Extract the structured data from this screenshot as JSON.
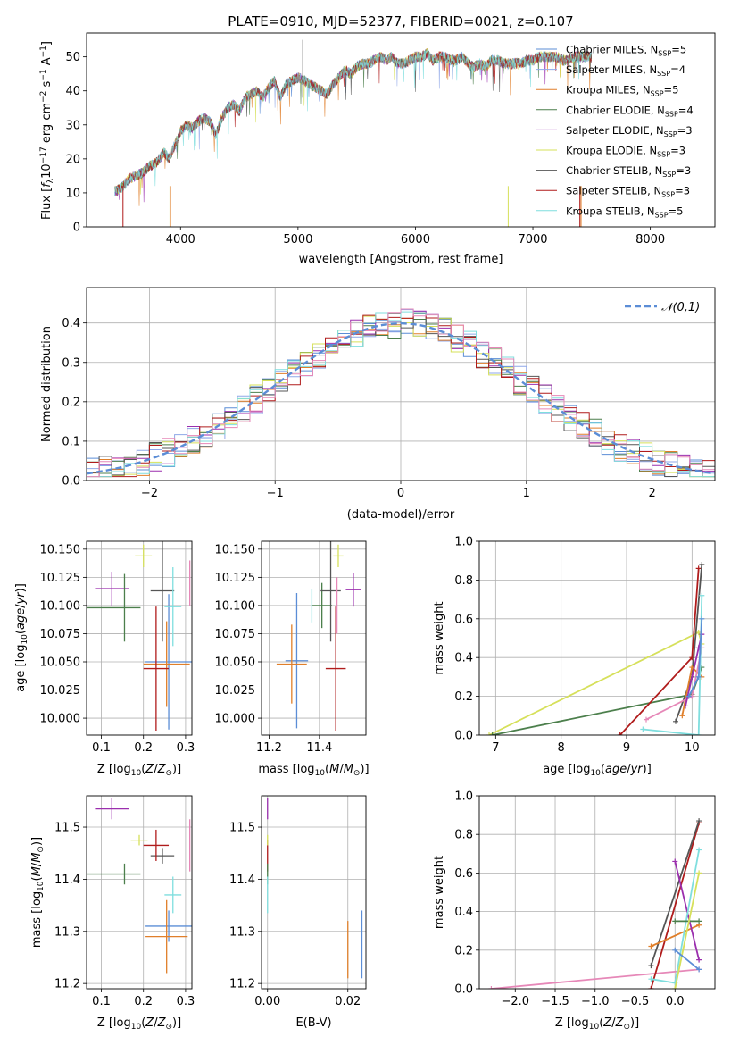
{
  "title": "PLATE=0910, MJD=52377, FIBERID=0021, z=0.107",
  "colors": {
    "chabrier_miles": "#5b8dd6",
    "salpeter_miles": "#8fa7e8",
    "kroupa_miles": "#e07f2a",
    "chabrier_elodie": "#4c7f4c",
    "salpeter_elodie": "#9b2fae",
    "kroupa_elodie": "#d6e05a",
    "chabrier_stelib": "#555555",
    "salpeter_stelib": "#b01c1c",
    "kroupa_stelib": "#7fdede",
    "pink": "#e688b8",
    "normal": "#5b8dd6"
  },
  "chart_data": [
    {
      "panel": "spectrum",
      "type": "line",
      "title": "PLATE=0910, MJD=52377, FIBERID=0021, z=0.107",
      "xlabel": "wavelength [Angstrom, rest frame]",
      "ylabel": "Flux [f_λ 10^-17 erg cm^-2 s^-1 A^-1]",
      "xlim": [
        3200,
        8550
      ],
      "ylim": [
        0,
        57
      ],
      "xticks": [
        "4000",
        "5000",
        "6000",
        "7000",
        "8000"
      ],
      "yticks": [
        "0",
        "10",
        "20",
        "30",
        "40",
        "50"
      ],
      "legend_position": "right",
      "legend": [
        {
          "base": "Chabrier MILES, N",
          "sub": "SSP",
          "tail": "=5"
        },
        {
          "base": "Salpeter MILES, N",
          "sub": "SSP",
          "tail": "=4"
        },
        {
          "base": "Kroupa MILES, N",
          "sub": "SSP",
          "tail": "=5"
        },
        {
          "base": "Chabrier ELODIE, N",
          "sub": "SSP",
          "tail": "=4"
        },
        {
          "base": "Salpeter ELODIE, N",
          "sub": "SSP",
          "tail": "=3"
        },
        {
          "base": "Kroupa ELODIE, N",
          "sub": "SSP",
          "tail": "=3"
        },
        {
          "base": "Chabrier STELIB, N",
          "sub": "SSP",
          "tail": "=3"
        },
        {
          "base": "Salpeter STELIB, N",
          "sub": "SSP",
          "tail": "=3"
        },
        {
          "base": "Kroupa STELIB, N",
          "sub": "SSP",
          "tail": "=5"
        }
      ],
      "spectrum_x": [
        3450,
        3500,
        3560,
        3620,
        3680,
        3740,
        3800,
        3860,
        3900,
        3950,
        4000,
        4050,
        4100,
        4150,
        4200,
        4250,
        4300,
        4350,
        4400,
        4450,
        4500,
        4550,
        4600,
        4650,
        4700,
        4750,
        4800,
        4850,
        4900,
        4950,
        5000,
        5050,
        5100,
        5150,
        5200,
        5250,
        5300,
        5350,
        5400,
        5450,
        5500,
        5550,
        5600,
        5650,
        5700,
        5750,
        5800,
        5850,
        5900,
        5950,
        6000,
        6050,
        6100,
        6150,
        6200,
        6250,
        6300,
        6350,
        6400,
        6450,
        6500,
        6550,
        6600,
        6650,
        6700,
        6750,
        6800,
        6850,
        6900,
        6950,
        7000,
        7050,
        7100,
        7150,
        7200,
        7250,
        7300,
        7350,
        7400,
        7450,
        7500
      ],
      "spectrum_y": [
        10.5,
        11.5,
        14,
        15,
        16,
        18,
        19,
        22,
        20,
        24,
        28,
        30,
        29,
        31,
        32,
        31,
        27,
        32,
        35,
        36,
        34,
        38,
        39,
        40,
        38,
        41,
        43,
        38,
        42,
        43,
        44,
        43,
        42,
        41,
        40,
        39,
        42,
        44,
        46,
        45,
        47,
        48,
        48,
        49,
        50,
        49,
        50,
        48,
        48,
        49,
        50,
        50,
        51,
        49,
        50,
        50,
        49,
        49,
        50,
        48,
        47,
        48,
        47,
        49,
        49,
        48,
        48,
        48,
        48,
        49,
        49,
        50,
        50,
        50,
        50,
        49,
        49,
        50,
        50,
        50,
        50
      ],
      "dropouts": [
        {
          "x": 3510,
          "color": "#b01c1c"
        },
        {
          "x": 3910,
          "color": "#d6e05a"
        },
        {
          "x": 3915,
          "color": "#e07f2a"
        },
        {
          "x": 6790,
          "color": "#d6e05a"
        },
        {
          "x": 7400,
          "color": "#b01c1c"
        },
        {
          "x": 7410,
          "color": "#e07f2a"
        }
      ]
    },
    {
      "panel": "residual-histogram",
      "type": "bar",
      "xlabel": "(data-model)/error",
      "ylabel": "Normed distribution",
      "xlim": [
        -2.5,
        2.5
      ],
      "ylim": [
        0,
        0.49
      ],
      "xticks": [
        "-2",
        "-1",
        "0",
        "1",
        "2"
      ],
      "yticks": [
        "0.0",
        "0.1",
        "0.2",
        "0.3",
        "0.4"
      ],
      "grid": true,
      "bin_width": 0.1,
      "normal_label": "𝒩(0,1)",
      "legend_position": "top-right"
    },
    {
      "panel": "age-vs-Z",
      "type": "scatter",
      "xlabel": "Z [log10(Z/Z⊙)]",
      "ylabel": "age  [log10(age/yr)]",
      "xlim": [
        0.065,
        0.315
      ],
      "ylim": [
        9.985,
        10.157
      ],
      "xticks": [
        "0.1",
        "0.2",
        "0.3"
      ],
      "yticks": [
        "10.000",
        "10.025",
        "10.050",
        "10.075",
        "10.100",
        "10.125",
        "10.150"
      ],
      "grid": true,
      "points": [
        {
          "x": 0.26,
          "y": 10.05,
          "xe": 0.055,
          "ye": 0.06,
          "color": "#5b8dd6"
        },
        {
          "x": 0.255,
          "y": 10.048,
          "xe": 0.055,
          "ye": 0.038,
          "color": "#e07f2a"
        },
        {
          "x": 0.2,
          "y": 10.144,
          "xe": 0.02,
          "ye": 0.01,
          "color": "#d6e05a"
        },
        {
          "x": 0.125,
          "y": 10.115,
          "xe": 0.04,
          "ye": 0.015,
          "color": "#9b2fae"
        },
        {
          "x": 0.13,
          "y": 10.098,
          "xe": 0.063,
          "ye": 0.0,
          "color": "#4c7f4c"
        },
        {
          "x": 0.155,
          "y": 10.098,
          "xe": 0.0,
          "ye": 0.03,
          "color": "#4c7f4c"
        },
        {
          "x": 0.245,
          "y": 10.113,
          "xe": 0.028,
          "ye": 0.045,
          "color": "#555555"
        },
        {
          "x": 0.23,
          "y": 10.044,
          "xe": 0.03,
          "ye": 0.055,
          "color": "#b01c1c"
        },
        {
          "x": 0.27,
          "y": 10.099,
          "xe": 0.02,
          "ye": 0.035,
          "color": "#7fdede"
        },
        {
          "x": 0.31,
          "y": 10.12,
          "xe": 0.0,
          "ye": 0.02,
          "color": "#e688b8"
        }
      ]
    },
    {
      "panel": "age-vs-mass",
      "type": "scatter",
      "xlabel": "mass [log10(M/M⊙)]",
      "ylabel": "",
      "xlim": [
        11.17,
        11.585
      ],
      "ylim": [
        9.985,
        10.157
      ],
      "xticks": [
        "11.2",
        "11.4"
      ],
      "yticks": [
        "10.000",
        "10.025",
        "10.050",
        "10.075",
        "10.100",
        "10.125",
        "10.150"
      ],
      "grid": true,
      "points": [
        {
          "x": 11.31,
          "y": 10.051,
          "xe": 0.045,
          "ye": 0.06,
          "color": "#5b8dd6"
        },
        {
          "x": 11.29,
          "y": 10.048,
          "xe": 0.06,
          "ye": 0.035,
          "color": "#e07f2a"
        },
        {
          "x": 11.475,
          "y": 10.144,
          "xe": 0.02,
          "ye": 0.01,
          "color": "#d6e05a"
        },
        {
          "x": 11.535,
          "y": 10.114,
          "xe": 0.03,
          "ye": 0.015,
          "color": "#9b2fae"
        },
        {
          "x": 11.41,
          "y": 10.1,
          "xe": 0.04,
          "ye": 0.02,
          "color": "#4c7f4c"
        },
        {
          "x": 11.445,
          "y": 10.113,
          "xe": 0.04,
          "ye": 0.045,
          "color": "#555555"
        },
        {
          "x": 11.465,
          "y": 10.044,
          "xe": 0.04,
          "ye": 0.055,
          "color": "#b01c1c"
        },
        {
          "x": 11.37,
          "y": 10.1,
          "xe": 0.0,
          "ye": 0.015,
          "color": "#7fdede"
        },
        {
          "x": 11.47,
          "y": 10.1,
          "xe": 0.0,
          "ye": 0.025,
          "color": "#e688b8"
        }
      ]
    },
    {
      "panel": "mass-weight-vs-age",
      "type": "line",
      "xlabel": "age  [log10(age/yr)]",
      "ylabel": "mass weight",
      "xlim": [
        6.75,
        10.35
      ],
      "ylim": [
        0,
        1.0
      ],
      "xticks": [
        "7",
        "8",
        "9",
        "10"
      ],
      "yticks": [
        "0.0",
        "0.2",
        "0.4",
        "0.6",
        "0.8",
        "1.0"
      ],
      "grid": true,
      "series": [
        {
          "color": "#d6e05a",
          "x": [
            6.9,
            10.1,
            10.15
          ],
          "y": [
            0.0,
            0.53,
            0.47
          ]
        },
        {
          "color": "#4c7f4c",
          "x": [
            6.95,
            10.0,
            10.15
          ],
          "y": [
            0.0,
            0.21,
            0.35
          ]
        },
        {
          "color": "#b01c1c",
          "x": [
            8.9,
            10.0,
            10.1
          ],
          "y": [
            0.0,
            0.4,
            0.86
          ]
        },
        {
          "color": "#555555",
          "x": [
            9.75,
            10.0,
            10.15
          ],
          "y": [
            0.07,
            0.3,
            0.88
          ]
        },
        {
          "color": "#e07f2a",
          "x": [
            9.85,
            10.0,
            10.15
          ],
          "y": [
            0.1,
            0.35,
            0.3
          ]
        },
        {
          "color": "#e688b8",
          "x": [
            9.3,
            10.0,
            10.15
          ],
          "y": [
            0.08,
            0.2,
            0.45
          ]
        },
        {
          "color": "#9b2fae",
          "x": [
            9.9,
            10.1,
            10.15
          ],
          "y": [
            0.15,
            0.45,
            0.52
          ]
        },
        {
          "color": "#7fdede",
          "x": [
            9.25,
            10.1,
            10.15
          ],
          "y": [
            0.03,
            0.0,
            0.72
          ]
        },
        {
          "color": "#5b8dd6",
          "x": [
            9.95,
            10.1,
            10.15
          ],
          "y": [
            0.2,
            0.3,
            0.6
          ]
        }
      ]
    },
    {
      "panel": "mass-vs-Z",
      "type": "scatter",
      "xlabel": "Z [log10(Z/Z⊙)]",
      "ylabel": "mass [log10(M/M⊙)]",
      "xlim": [
        0.065,
        0.315
      ],
      "ylim": [
        11.19,
        11.56
      ],
      "xticks": [
        "0.1",
        "0.2",
        "0.3"
      ],
      "yticks": [
        "11.2",
        "11.3",
        "11.4",
        "11.5"
      ],
      "grid": true,
      "points": [
        {
          "x": 0.26,
          "y": 11.31,
          "xe": 0.055,
          "ye": 0.03,
          "color": "#5b8dd6"
        },
        {
          "x": 0.255,
          "y": 11.29,
          "xe": 0.05,
          "ye": 0.07,
          "color": "#e07f2a"
        },
        {
          "x": 0.19,
          "y": 11.475,
          "xe": 0.02,
          "ye": 0.01,
          "color": "#d6e05a"
        },
        {
          "x": 0.125,
          "y": 11.535,
          "xe": 0.04,
          "ye": 0.02,
          "color": "#9b2fae"
        },
        {
          "x": 0.13,
          "y": 11.41,
          "xe": 0.063,
          "ye": 0.0,
          "color": "#4c7f4c"
        },
        {
          "x": 0.155,
          "y": 11.41,
          "xe": 0.0,
          "ye": 0.02,
          "color": "#4c7f4c"
        },
        {
          "x": 0.245,
          "y": 11.445,
          "xe": 0.028,
          "ye": 0.015,
          "color": "#555555"
        },
        {
          "x": 0.23,
          "y": 11.465,
          "xe": 0.03,
          "ye": 0.03,
          "color": "#b01c1c"
        },
        {
          "x": 0.27,
          "y": 11.37,
          "xe": 0.02,
          "ye": 0.035,
          "color": "#7fdede"
        },
        {
          "x": 0.31,
          "y": 11.465,
          "xe": 0.0,
          "ye": 0.05,
          "color": "#e688b8"
        }
      ]
    },
    {
      "panel": "mass-vs-EBV",
      "type": "scatter",
      "xlabel": "E(B-V)",
      "ylabel": "",
      "xlim": [
        -0.0015,
        0.0245
      ],
      "ylim": [
        11.19,
        11.56
      ],
      "xticks": [
        "0.00",
        "0.02"
      ],
      "yticks": [
        "11.2",
        "11.3",
        "11.4",
        "11.5"
      ],
      "grid": true,
      "points": [
        {
          "x": 0.0,
          "y": 11.535,
          "xe": 0.0,
          "ye": 0.02,
          "color": "#9b2fae"
        },
        {
          "x": 0.0,
          "y": 11.445,
          "xe": 0.0,
          "ye": 0.03,
          "color": "#b01c1c"
        },
        {
          "x": 0.0,
          "y": 11.41,
          "xe": 0.0,
          "ye": 0.02,
          "color": "#4c7f4c"
        },
        {
          "x": 0.0,
          "y": 11.37,
          "xe": 0.0,
          "ye": 0.035,
          "color": "#7fdede"
        },
        {
          "x": 0.0,
          "y": 11.475,
          "xe": 0.0,
          "ye": 0.01,
          "color": "#d6e05a"
        },
        {
          "x": 0.02,
          "y": 11.265,
          "xe": 0.0,
          "ye": 0.055,
          "color": "#e07f2a"
        },
        {
          "x": 0.0235,
          "y": 11.275,
          "xe": 0.0,
          "ye": 0.065,
          "color": "#5b8dd6"
        }
      ]
    },
    {
      "panel": "mass-weight-vs-Z",
      "type": "line",
      "xlabel": "Z [log10(Z/Z⊙)]",
      "ylabel": "mass weight",
      "xlim": [
        -2.45,
        0.5
      ],
      "ylim": [
        0,
        1.0
      ],
      "xticks": [
        "-2.0",
        "-1.5",
        "-1.0",
        "-0.5",
        "0.0"
      ],
      "yticks": [
        "0.0",
        "0.2",
        "0.4",
        "0.6",
        "0.8",
        "1.0"
      ],
      "grid": true,
      "series": [
        {
          "color": "#e688b8",
          "x": [
            -2.3,
            0.3
          ],
          "y": [
            0.0,
            0.1
          ]
        },
        {
          "color": "#b01c1c",
          "x": [
            -0.3,
            0.3
          ],
          "y": [
            0.0,
            0.86
          ]
        },
        {
          "color": "#555555",
          "x": [
            -0.3,
            0.3
          ],
          "y": [
            0.12,
            0.87
          ]
        },
        {
          "color": "#e07f2a",
          "x": [
            -0.3,
            0.3
          ],
          "y": [
            0.22,
            0.33
          ]
        },
        {
          "color": "#9b2fae",
          "x": [
            0.0,
            0.3
          ],
          "y": [
            0.66,
            0.15
          ]
        },
        {
          "color": "#7fdede",
          "x": [
            -0.3,
            0.0,
            0.3
          ],
          "y": [
            0.05,
            0.03,
            0.72
          ]
        },
        {
          "color": "#4c7f4c",
          "x": [
            0.0,
            0.3
          ],
          "y": [
            0.35,
            0.35
          ]
        },
        {
          "color": "#d6e05a",
          "x": [
            0.0,
            0.3
          ],
          "y": [
            0.0,
            0.6
          ]
        },
        {
          "color": "#5b8dd6",
          "x": [
            0.0,
            0.3
          ],
          "y": [
            0.2,
            0.1
          ]
        }
      ]
    }
  ]
}
